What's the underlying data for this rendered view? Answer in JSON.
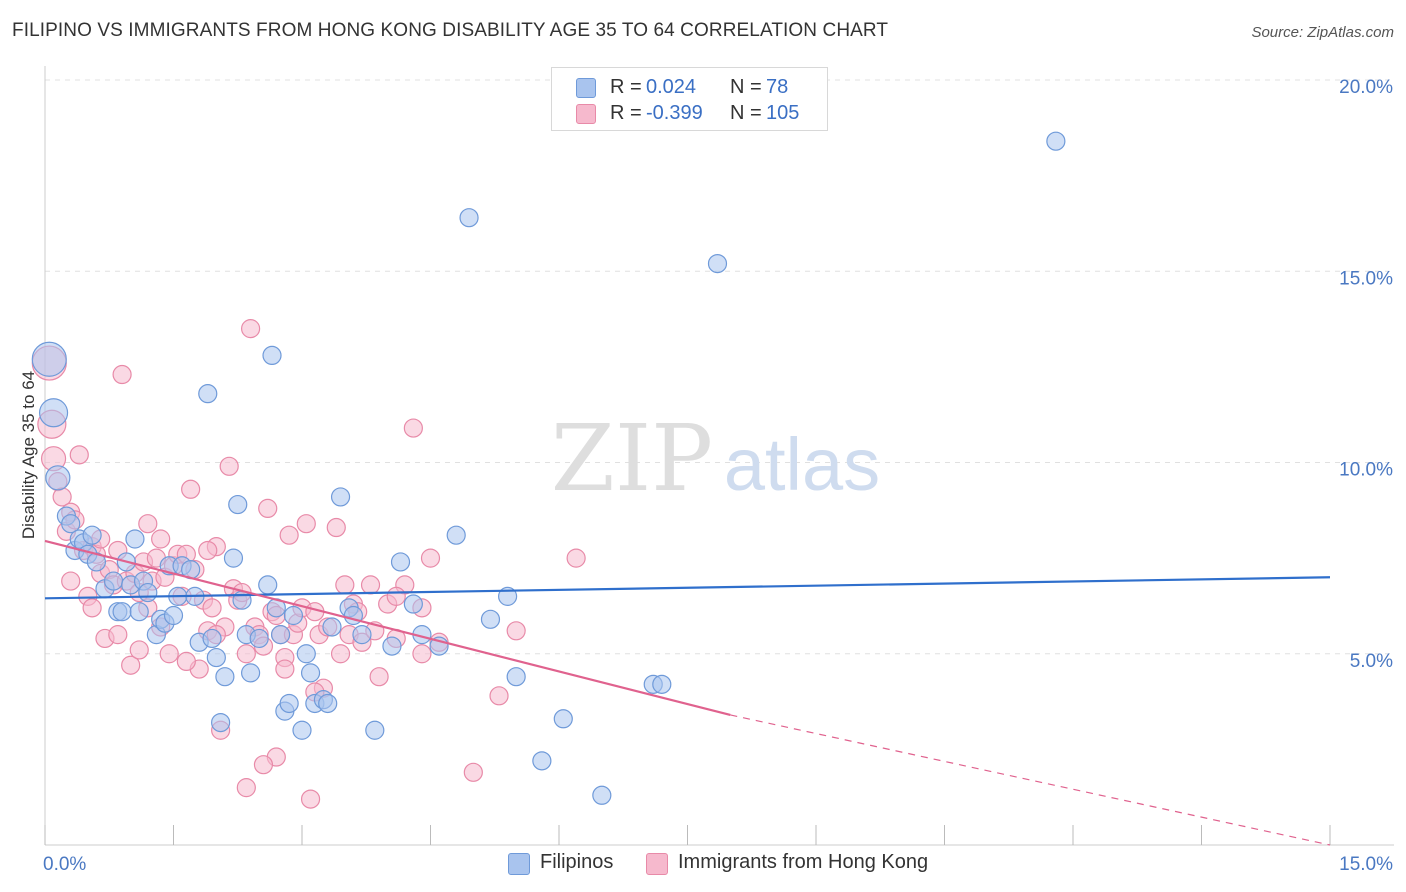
{
  "title": "FILIPINO VS IMMIGRANTS FROM HONG KONG DISABILITY AGE 35 TO 64 CORRELATION CHART",
  "source": "Source: ZipAtlas.com",
  "watermark": {
    "zip": "ZIP",
    "atlas": "atlas"
  },
  "legend": {
    "rows": [
      {
        "r_label": "R =",
        "r_value": "0.024",
        "n_label": "N =",
        "n_value": "78"
      },
      {
        "r_label": "R =",
        "r_value": "-0.399",
        "n_label": "N =",
        "n_value": "105"
      }
    ]
  },
  "bottom_legend": {
    "series1": "Filipinos",
    "series2": "Immigrants from Hong Kong"
  },
  "colors": {
    "blue_fill": "#a9c4ee",
    "blue_stroke": "#6f9ad9",
    "blue_line": "#2f6fcc",
    "pink_fill": "#f6b9cd",
    "pink_stroke": "#e88aa8",
    "pink_line": "#e0628e",
    "grid": "#e0e0e0",
    "axis_text": "#4a78c2"
  },
  "chart_data": {
    "type": "scatter",
    "title": "FILIPINO VS IMMIGRANTS FROM HONG KONG DISABILITY AGE 35 TO 64 CORRELATION CHART",
    "xlabel": "",
    "ylabel": "Disability Age 35 to 64",
    "xlim": [
      0,
      15
    ],
    "ylim": [
      0,
      20
    ],
    "x_tick_labels": [
      "0.0%",
      "15.0%"
    ],
    "y_ticks": [
      5,
      10,
      15,
      20
    ],
    "y_tick_labels": [
      "5.0%",
      "10.0%",
      "15.0%",
      "20.0%"
    ],
    "grid": true,
    "series": [
      {
        "name": "Filipinos",
        "R": 0.024,
        "N": 78,
        "trend": {
          "x": [
            0,
            15
          ],
          "y": [
            6.45,
            7.0
          ]
        },
        "points": [
          [
            0.05,
            12.7
          ],
          [
            0.1,
            11.3
          ],
          [
            0.15,
            9.6
          ],
          [
            0.25,
            8.6
          ],
          [
            0.3,
            8.4
          ],
          [
            0.35,
            7.7
          ],
          [
            0.4,
            8.0
          ],
          [
            0.45,
            7.9
          ],
          [
            0.5,
            7.6
          ],
          [
            0.55,
            8.1
          ],
          [
            0.6,
            7.4
          ],
          [
            0.7,
            6.7
          ],
          [
            0.8,
            6.9
          ],
          [
            0.85,
            6.1
          ],
          [
            0.9,
            6.1
          ],
          [
            0.95,
            7.4
          ],
          [
            1.0,
            6.8
          ],
          [
            1.05,
            8.0
          ],
          [
            1.1,
            6.1
          ],
          [
            1.15,
            6.9
          ],
          [
            1.2,
            6.6
          ],
          [
            1.3,
            5.5
          ],
          [
            1.35,
            5.9
          ],
          [
            1.4,
            5.8
          ],
          [
            1.45,
            7.3
          ],
          [
            1.5,
            6.0
          ],
          [
            1.55,
            6.5
          ],
          [
            1.6,
            7.3
          ],
          [
            1.7,
            7.2
          ],
          [
            1.75,
            6.5
          ],
          [
            1.8,
            5.3
          ],
          [
            1.9,
            11.8
          ],
          [
            1.95,
            5.4
          ],
          [
            2.0,
            4.9
          ],
          [
            2.05,
            3.2
          ],
          [
            2.1,
            4.4
          ],
          [
            2.2,
            7.5
          ],
          [
            2.25,
            8.9
          ],
          [
            2.3,
            6.4
          ],
          [
            2.35,
            5.5
          ],
          [
            2.4,
            4.5
          ],
          [
            2.5,
            5.4
          ],
          [
            2.6,
            6.8
          ],
          [
            2.65,
            12.8
          ],
          [
            2.7,
            6.2
          ],
          [
            2.75,
            5.5
          ],
          [
            2.8,
            3.5
          ],
          [
            2.85,
            3.7
          ],
          [
            2.9,
            6.0
          ],
          [
            3.0,
            3.0
          ],
          [
            3.05,
            5.0
          ],
          [
            3.1,
            4.5
          ],
          [
            3.15,
            3.7
          ],
          [
            3.25,
            3.8
          ],
          [
            3.3,
            3.7
          ],
          [
            3.35,
            5.7
          ],
          [
            3.45,
            9.1
          ],
          [
            3.55,
            6.2
          ],
          [
            3.6,
            6.0
          ],
          [
            3.7,
            5.5
          ],
          [
            3.85,
            3.0
          ],
          [
            4.05,
            5.2
          ],
          [
            4.15,
            7.4
          ],
          [
            4.3,
            6.3
          ],
          [
            4.4,
            5.5
          ],
          [
            4.6,
            5.2
          ],
          [
            4.8,
            8.1
          ],
          [
            4.95,
            16.4
          ],
          [
            5.2,
            5.9
          ],
          [
            5.4,
            6.5
          ],
          [
            5.5,
            4.4
          ],
          [
            5.8,
            2.2
          ],
          [
            6.05,
            3.3
          ],
          [
            6.5,
            1.3
          ],
          [
            7.1,
            4.2
          ],
          [
            7.2,
            4.2
          ],
          [
            7.85,
            15.2
          ],
          [
            11.8,
            18.4
          ]
        ]
      },
      {
        "name": "Immigrants from Hong Kong",
        "R": -0.399,
        "N": 105,
        "trend": {
          "x": [
            0,
            8.0
          ],
          "y": [
            7.95,
            3.4
          ]
        },
        "trend_dashed": {
          "x": [
            8.0,
            15.0
          ],
          "y": [
            3.4,
            -0.55
          ]
        },
        "points": [
          [
            0.05,
            12.6
          ],
          [
            0.08,
            11.0
          ],
          [
            0.1,
            10.1
          ],
          [
            0.15,
            9.5
          ],
          [
            0.2,
            9.1
          ],
          [
            0.25,
            8.2
          ],
          [
            0.3,
            8.7
          ],
          [
            0.35,
            8.5
          ],
          [
            0.4,
            10.2
          ],
          [
            0.45,
            7.7
          ],
          [
            0.5,
            6.5
          ],
          [
            0.55,
            7.8
          ],
          [
            0.6,
            7.6
          ],
          [
            0.65,
            7.1
          ],
          [
            0.7,
            5.4
          ],
          [
            0.75,
            7.2
          ],
          [
            0.8,
            6.8
          ],
          [
            0.85,
            7.7
          ],
          [
            0.9,
            12.3
          ],
          [
            0.95,
            6.9
          ],
          [
            1.0,
            4.7
          ],
          [
            1.05,
            7.1
          ],
          [
            1.1,
            6.6
          ],
          [
            1.15,
            7.4
          ],
          [
            1.2,
            6.2
          ],
          [
            1.25,
            6.9
          ],
          [
            1.3,
            7.5
          ],
          [
            1.35,
            5.7
          ],
          [
            1.4,
            7.0
          ],
          [
            1.45,
            5.0
          ],
          [
            1.5,
            7.3
          ],
          [
            1.55,
            7.6
          ],
          [
            1.6,
            6.5
          ],
          [
            1.65,
            7.6
          ],
          [
            1.7,
            9.3
          ],
          [
            1.75,
            7.2
          ],
          [
            1.8,
            4.6
          ],
          [
            1.85,
            6.4
          ],
          [
            1.9,
            5.6
          ],
          [
            1.95,
            6.2
          ],
          [
            2.0,
            7.8
          ],
          [
            2.05,
            3.0
          ],
          [
            2.1,
            5.7
          ],
          [
            2.15,
            9.9
          ],
          [
            2.2,
            6.7
          ],
          [
            2.25,
            6.4
          ],
          [
            2.3,
            6.6
          ],
          [
            2.35,
            1.5
          ],
          [
            2.4,
            13.5
          ],
          [
            2.45,
            5.7
          ],
          [
            2.5,
            5.5
          ],
          [
            2.55,
            5.2
          ],
          [
            2.6,
            8.8
          ],
          [
            2.65,
            6.1
          ],
          [
            2.7,
            6.0
          ],
          [
            2.75,
            5.5
          ],
          [
            2.8,
            4.9
          ],
          [
            2.85,
            8.1
          ],
          [
            2.9,
            5.5
          ],
          [
            2.95,
            5.8
          ],
          [
            3.0,
            6.2
          ],
          [
            3.05,
            8.4
          ],
          [
            3.1,
            1.2
          ],
          [
            3.15,
            6.1
          ],
          [
            3.2,
            5.5
          ],
          [
            3.25,
            4.1
          ],
          [
            3.3,
            5.7
          ],
          [
            3.4,
            8.3
          ],
          [
            3.5,
            6.8
          ],
          [
            3.55,
            5.5
          ],
          [
            3.6,
            6.3
          ],
          [
            3.7,
            5.3
          ],
          [
            3.8,
            6.8
          ],
          [
            3.85,
            5.6
          ],
          [
            3.9,
            4.4
          ],
          [
            4.0,
            6.3
          ],
          [
            4.1,
            5.4
          ],
          [
            4.2,
            6.8
          ],
          [
            4.3,
            10.9
          ],
          [
            4.4,
            5.0
          ],
          [
            4.5,
            7.5
          ],
          [
            4.6,
            5.3
          ],
          [
            5.3,
            3.9
          ],
          [
            5.5,
            5.6
          ],
          [
            6.2,
            7.5
          ],
          [
            2.7,
            2.3
          ],
          [
            2.55,
            2.1
          ],
          [
            5.0,
            1.9
          ],
          [
            1.2,
            8.4
          ],
          [
            0.55,
            6.2
          ],
          [
            0.85,
            5.5
          ],
          [
            1.65,
            4.8
          ],
          [
            2.0,
            5.5
          ],
          [
            2.35,
            5.0
          ],
          [
            3.15,
            4.0
          ],
          [
            3.45,
            5.0
          ],
          [
            4.1,
            6.5
          ],
          [
            1.35,
            8.0
          ],
          [
            2.8,
            4.6
          ],
          [
            0.65,
            8.0
          ],
          [
            1.1,
            5.1
          ],
          [
            1.9,
            7.7
          ],
          [
            3.65,
            6.1
          ],
          [
            4.4,
            6.2
          ],
          [
            0.3,
            6.9
          ]
        ]
      }
    ]
  }
}
